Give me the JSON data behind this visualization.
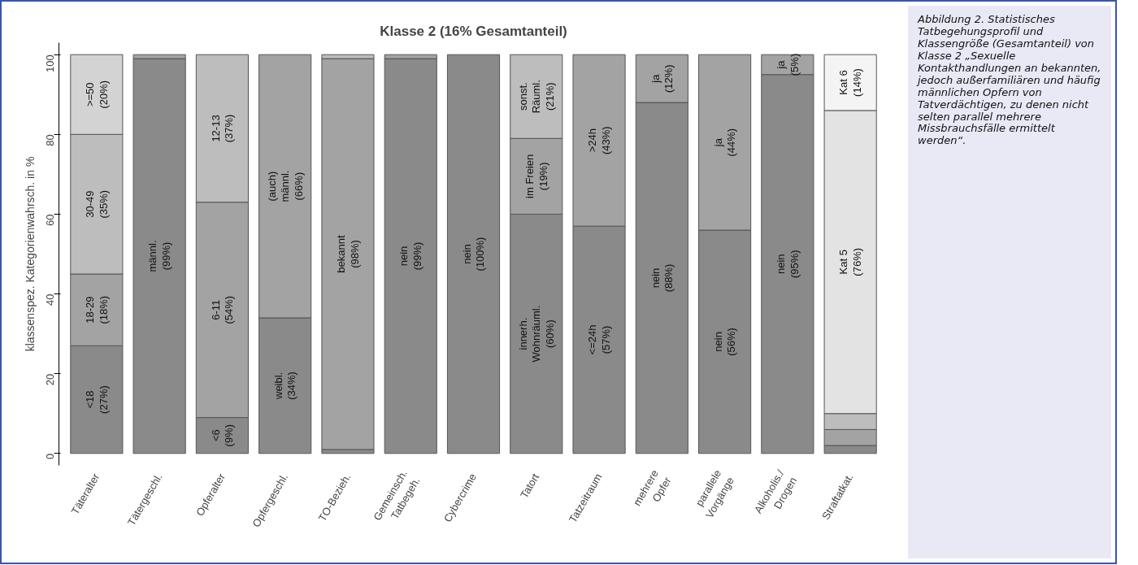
{
  "chart_data": {
    "type": "bar",
    "stacked": true,
    "title": "Klasse 2 (16% Gesamtanteil)",
    "ylabel": "klassenspez. Kategorienwahrsch. in %",
    "categories": [
      "Täteralter",
      "Tätergeschl.",
      "Opferalter",
      "Opfergeschl.",
      "TO-Bezieh.",
      "Gemeinsch.\nTatbegeh.",
      "Cybercrime",
      "Tatort",
      "Tatzeitraum",
      "mehrere\nOpfer",
      "parallele\nVorgänge",
      "Alkoholis./\nDrogen",
      "Straftatkat."
    ],
    "series": [
      {
        "color": "#8a8a8a",
        "values": [
          27,
          99,
          9,
          34,
          1,
          99,
          100,
          60,
          57,
          88,
          56,
          95,
          2
        ],
        "value_labels": [
          "<18\n(27%)",
          "männl.\n(99%)",
          "<6\n(9%)",
          "weibl.\n(34%)",
          null,
          "nein\n(99%)",
          "nein\n(100%)",
          "innerh.\nWohnräuml.\n(60%)",
          "<=24h\n(57%)",
          "nein\n(88%)",
          "nein\n(56%)",
          "nein\n(95%)",
          null
        ]
      },
      {
        "color": "#a3a3a3",
        "values": [
          18,
          1,
          54,
          66,
          98,
          1,
          null,
          19,
          43,
          12,
          44,
          5,
          4
        ],
        "value_labels": [
          "18-29\n(18%)",
          null,
          "6-11\n(54%)",
          "(auch)\nmännl.\n(66%)",
          "bekannt\n(98%)",
          null,
          null,
          "im Freien\n(19%)",
          ">24h\n(43%)",
          "ja\n(12%)",
          "ja\n(44%)",
          "ja\n(5%)",
          null
        ]
      },
      {
        "color": "#bdbdbd",
        "values": [
          35,
          null,
          37,
          null,
          1,
          null,
          null,
          21,
          null,
          null,
          null,
          null,
          4
        ],
        "value_labels": [
          "30-49\n(35%)",
          null,
          "12-13\n(37%)",
          null,
          null,
          null,
          null,
          "sonst.\nRäuml.\n(21%)",
          null,
          null,
          null,
          null,
          null
        ]
      },
      {
        "color": "#d3d3d3",
        "values": [
          20,
          null,
          null,
          null,
          null,
          null,
          null,
          null,
          null,
          null,
          null,
          null,
          null
        ],
        "value_labels": [
          ">=50\n(20%)",
          null,
          null,
          null,
          null,
          null,
          null,
          null,
          null,
          null,
          null,
          null,
          null
        ]
      },
      {
        "color": "#e3e3e3",
        "values": [
          null,
          null,
          null,
          null,
          null,
          null,
          null,
          null,
          null,
          null,
          null,
          null,
          76
        ],
        "value_labels": [
          null,
          null,
          null,
          null,
          null,
          null,
          null,
          null,
          null,
          null,
          null,
          null,
          "Kat 5\n(76%)"
        ]
      },
      {
        "color": "#f4f4f4",
        "values": [
          null,
          null,
          null,
          null,
          null,
          null,
          null,
          null,
          null,
          null,
          null,
          null,
          14
        ],
        "value_labels": [
          null,
          null,
          null,
          null,
          null,
          null,
          null,
          null,
          null,
          null,
          null,
          null,
          "Kat 6\n(14%)"
        ]
      }
    ],
    "ylim": [
      -3,
      103
    ],
    "yticks": [
      0,
      20,
      40,
      60,
      80,
      100
    ],
    "grid": false,
    "annotations": [
      "Abbildung 2. Statistisches Tatbegehungsprofil und Klassengröße (Gesamtanteil) von Klasse 2 „Sexuelle Kontakthandlungen an bekannten, jedoch außerfamiliären und häufig männlichen Opfern von Tatverdächtigen, zu denen nicht selten parallel mehrere Missbrauchsfälle ermittelt werden“."
    ]
  }
}
